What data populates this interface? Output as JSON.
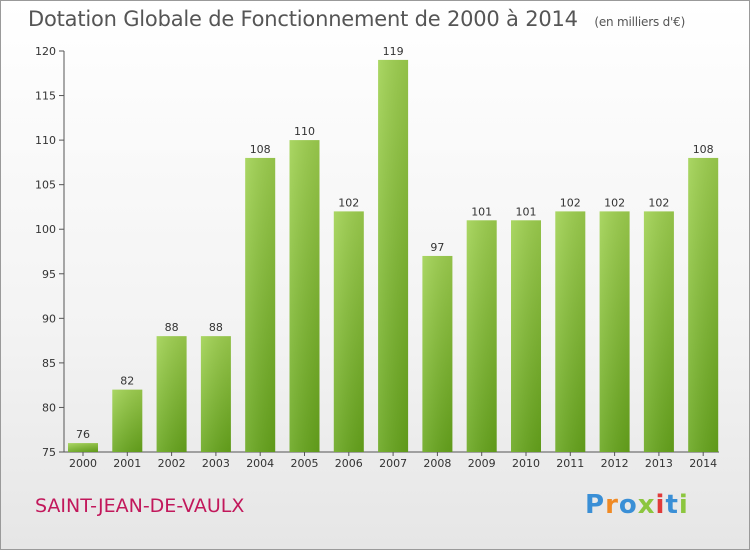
{
  "chart_data": {
    "type": "bar",
    "title": "Dotation Globale de Fonctionnement de 2000 à 2014",
    "subtitle": "(en milliers d'€)",
    "categories": [
      "2000",
      "2001",
      "2002",
      "2003",
      "2004",
      "2005",
      "2006",
      "2007",
      "2008",
      "2009",
      "2010",
      "2011",
      "2012",
      "2013",
      "2014"
    ],
    "values": [
      76,
      82,
      88,
      88,
      108,
      110,
      102,
      119,
      97,
      101,
      101,
      102,
      102,
      102,
      108
    ],
    "ylim": [
      75,
      120
    ],
    "yticks": [
      75,
      80,
      85,
      90,
      95,
      100,
      105,
      110,
      115,
      120
    ],
    "grid": false,
    "bar_color": "#8cc63f"
  },
  "footer": {
    "commune": "SAINT-JEAN-DE-VAULX",
    "logo_text": "Proxiti",
    "logo_colors": [
      "#3a8fd6",
      "#f08a24",
      "#3a8fd6",
      "#8cc63f",
      "#e03a3a",
      "#3a8fd6",
      "#8cc63f"
    ]
  }
}
